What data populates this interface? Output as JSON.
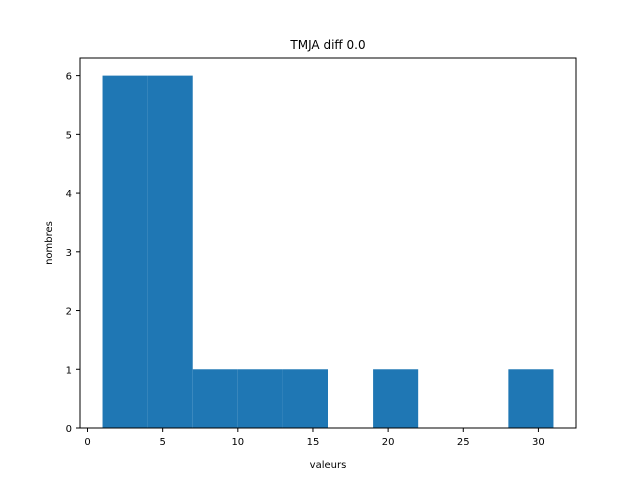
{
  "chart_data": {
    "type": "bar",
    "title": "TMJA diff 0.0",
    "xlabel": "valeurs",
    "ylabel": "nombres",
    "xlim": [
      -0.5,
      32.5
    ],
    "ylim": [
      0,
      6.3
    ],
    "xticks": [
      0,
      5,
      10,
      15,
      20,
      25,
      30
    ],
    "yticks": [
      0,
      1,
      2,
      3,
      4,
      5,
      6
    ],
    "bin_edges": [
      1,
      4,
      7,
      10,
      13,
      16,
      19,
      22,
      25,
      28,
      31
    ],
    "values": [
      6,
      6,
      1,
      1,
      1,
      0,
      1,
      0,
      0,
      1
    ],
    "color": "#1f77b4",
    "grid": false
  }
}
